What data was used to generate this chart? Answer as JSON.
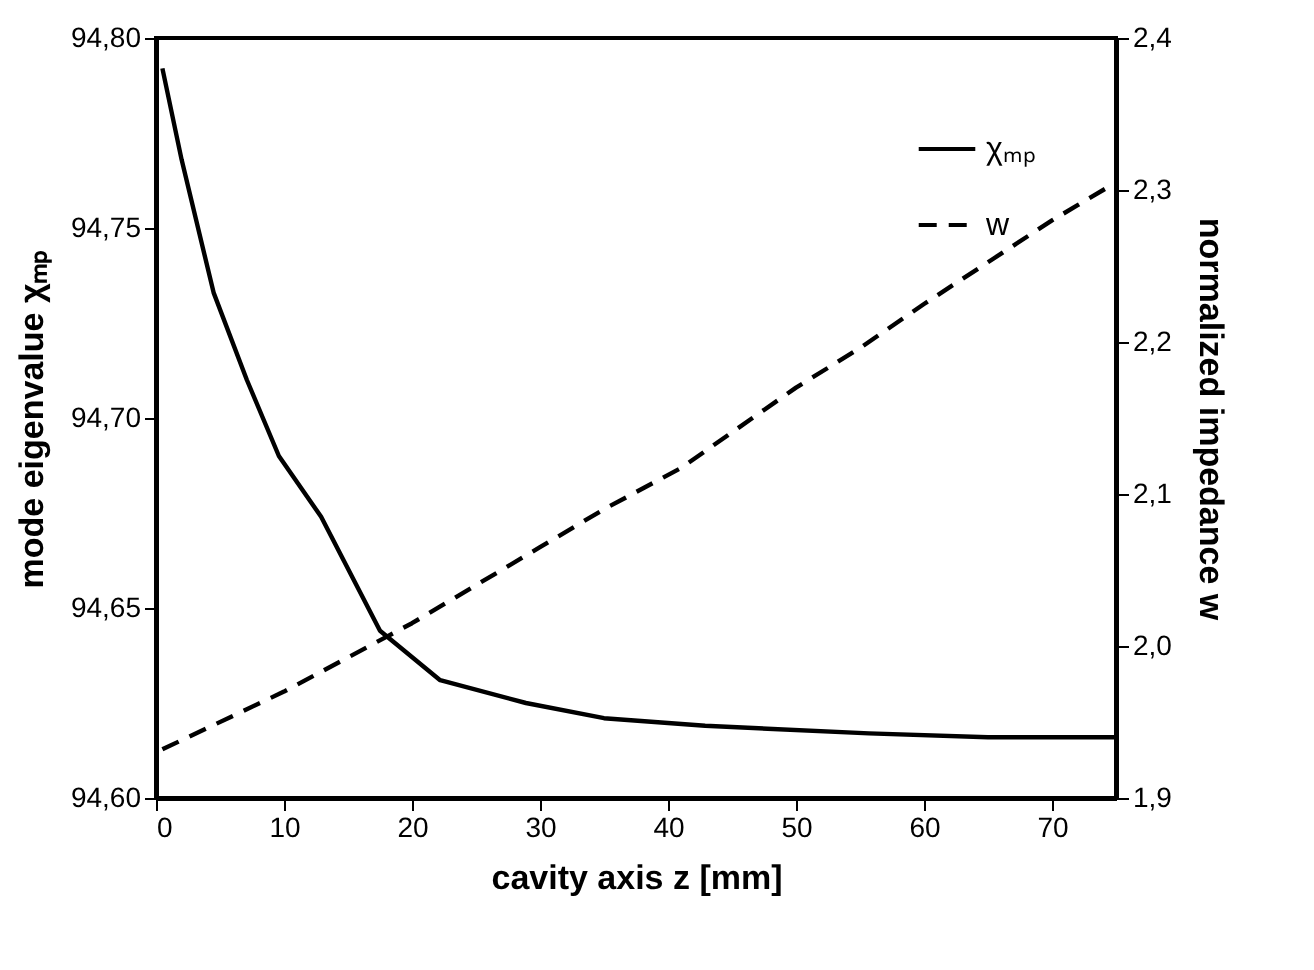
{
  "chart_data": {
    "type": "line",
    "xlabel": "cavity axis z [mm]",
    "ylabel": "mode eigenvalue χₘₚ",
    "y2label": "normalized impedance w",
    "xlim": [
      0,
      75
    ],
    "xticks": [
      0,
      10,
      20,
      30,
      40,
      50,
      60,
      70
    ],
    "ylim": [
      94.6,
      94.8
    ],
    "yticks": [
      {
        "value": 94.6,
        "label": "94,60"
      },
      {
        "value": 94.65,
        "label": "94,65"
      },
      {
        "value": 94.7,
        "label": "94,70"
      },
      {
        "value": 94.75,
        "label": "94,75"
      },
      {
        "value": 94.8,
        "label": "94,80"
      }
    ],
    "y2lim": [
      1.9,
      2.4
    ],
    "y2ticks": [
      {
        "value": 1.9,
        "label": "1,9"
      },
      {
        "value": 2.0,
        "label": "2,0"
      },
      {
        "value": 2.1,
        "label": "2,1"
      },
      {
        "value": 2.2,
        "label": "2,2"
      },
      {
        "value": 2.3,
        "label": "2,3"
      },
      {
        "value": 2.4,
        "label": "2,4"
      }
    ],
    "legend": "top right",
    "grid": false,
    "series": [
      {
        "name": "χₘₚ",
        "color": "#000000",
        "line_style": "solid",
        "x": [
          0.5,
          2,
          4.5,
          7.1,
          9.6,
          12.9,
          17.5,
          22.2,
          28.9,
          35,
          42.9,
          55.7,
          65,
          75
        ],
        "values": [
          94.792,
          94.768,
          94.733,
          94.71,
          94.69,
          94.674,
          94.644,
          94.631,
          94.625,
          94.621,
          94.619,
          94.617,
          94.616,
          94.616
        ]
      },
      {
        "name": "w",
        "color": "#000000",
        "line_style": "dashed",
        "axis": "y2",
        "x": [
          0.5,
          10,
          18,
          20,
          30,
          35,
          41,
          50,
          55,
          60,
          70,
          72,
          75
        ],
        "values": [
          1.932,
          1.97,
          2.006,
          2.015,
          2.065,
          2.09,
          2.117,
          2.17,
          2.196,
          2.225,
          2.28,
          2.29,
          2.305
        ]
      }
    ]
  }
}
